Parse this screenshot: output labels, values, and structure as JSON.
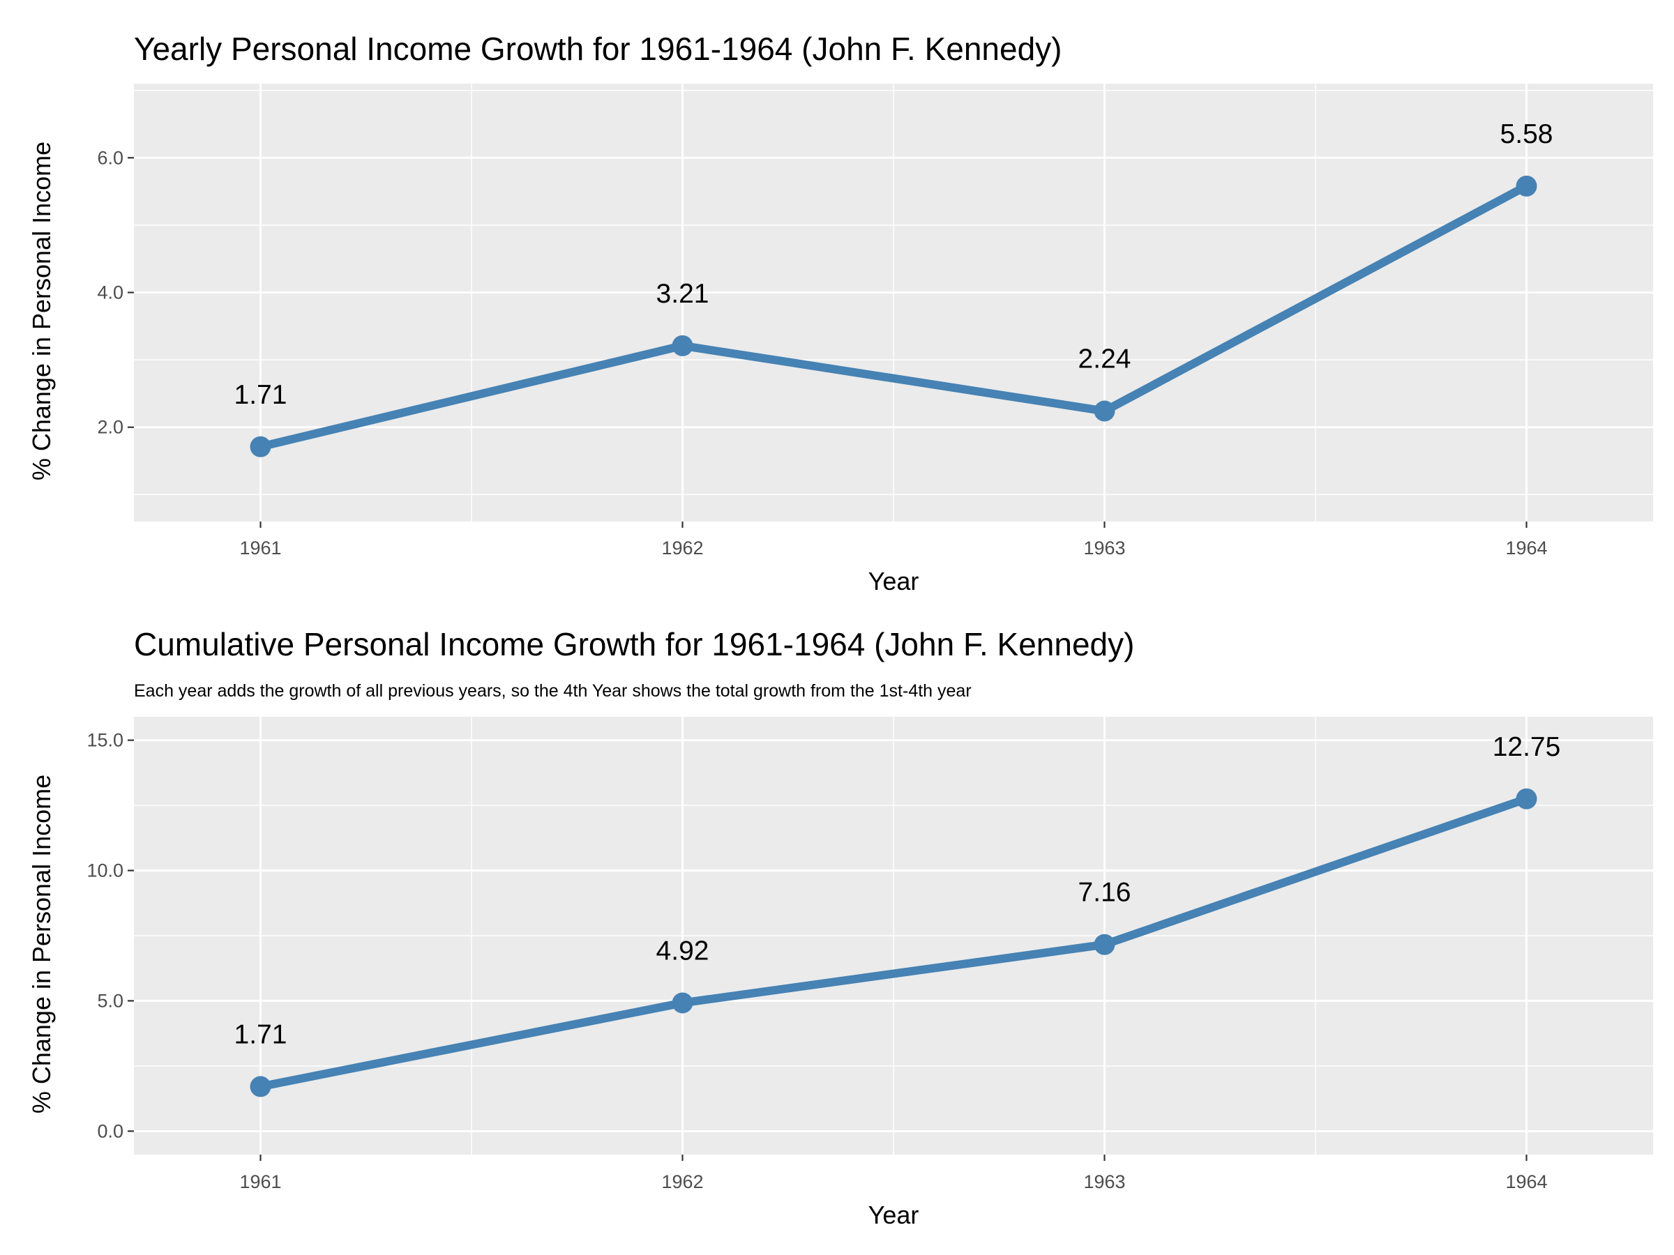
{
  "chart_data": [
    {
      "type": "line",
      "title": "Yearly Personal Income Growth for 1961-1964 (John F. Kennedy)",
      "subtitle": "",
      "xlabel": "Year",
      "ylabel": "% Change in Personal Income",
      "categories": [
        "1961",
        "1962",
        "1963",
        "1964"
      ],
      "values": [
        1.71,
        3.21,
        2.24,
        5.58
      ],
      "data_labels": [
        "1.71",
        "3.21",
        "2.24",
        "5.58"
      ],
      "yticks": [
        2.0,
        4.0,
        6.0
      ],
      "ytick_labels": [
        "2.0",
        "4.0",
        "6.0"
      ],
      "ylim": [
        0.6,
        7.1
      ],
      "grid": true,
      "legend": "none",
      "color": "#4682b4"
    },
    {
      "type": "line",
      "title": "Cumulative Personal Income Growth for 1961-1964 (John F. Kennedy)",
      "subtitle": "Each year adds the growth of all previous years, so the 4th Year shows the total growth from the 1st-4th year",
      "xlabel": "Year",
      "ylabel": "% Change in Personal Income",
      "categories": [
        "1961",
        "1962",
        "1963",
        "1964"
      ],
      "values": [
        1.71,
        4.92,
        7.16,
        12.75
      ],
      "data_labels": [
        "1.71",
        "4.92",
        "7.16",
        "12.75"
      ],
      "yticks": [
        0.0,
        5.0,
        10.0,
        15.0
      ],
      "ytick_labels": [
        "0.0",
        "5.0",
        "10.0",
        "15.0"
      ],
      "ylim": [
        -0.9,
        15.9
      ],
      "grid": true,
      "legend": "none",
      "color": "#4682b4"
    }
  ]
}
